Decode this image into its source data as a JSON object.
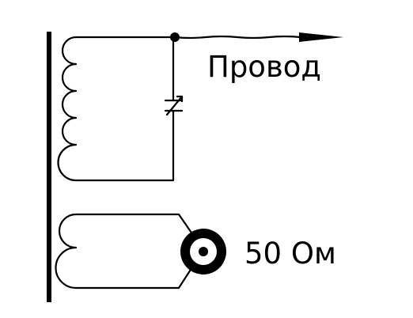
{
  "labels": {
    "wire_label": "Провод",
    "impedance_label": "50 Ом"
  },
  "colors": {
    "ink": "#000000",
    "background": "#ffffff"
  }
}
